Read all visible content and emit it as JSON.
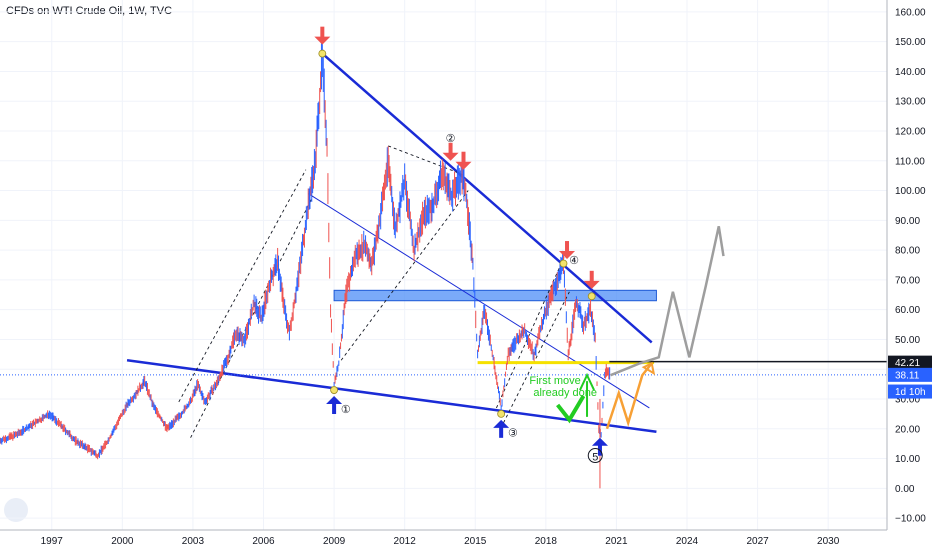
{
  "header": {
    "title": "CFDs on WTI Crude Oil, 1W, TVC"
  },
  "chart_data": {
    "type": "line",
    "title": "CFDs on WTI Crude Oil, 1W, TVC",
    "xlabel": "",
    "ylabel": "",
    "xlim": [
      1994.8,
      2032.5
    ],
    "ylim": [
      -14,
      164
    ],
    "x_ticks": [
      "1997",
      "2000",
      "2003",
      "2006",
      "2009",
      "2012",
      "2015",
      "2018",
      "2021",
      "2024",
      "2027",
      "2030"
    ],
    "x_tick_values": [
      1997,
      2000,
      2003,
      2006,
      2009,
      2012,
      2015,
      2018,
      2021,
      2024,
      2027,
      2030
    ],
    "y_ticks": [
      "160.00",
      "150.00",
      "140.00",
      "130.00",
      "120.00",
      "110.00",
      "100.00",
      "90.00",
      "80.00",
      "70.00",
      "60.00",
      "50.00",
      "40.00",
      "30.00",
      "20.00",
      "10.00",
      "0.00",
      "−10.00"
    ],
    "y_tick_values": [
      160,
      150,
      140,
      130,
      120,
      110,
      100,
      90,
      80,
      70,
      60,
      50,
      40,
      30,
      20,
      10,
      0,
      -10
    ],
    "grid": true,
    "price_series": [
      [
        1994.8,
        16
      ],
      [
        1995.5,
        18
      ],
      [
        1996.3,
        22
      ],
      [
        1996.9,
        25
      ],
      [
        1997.4,
        21
      ],
      [
        1998.0,
        16
      ],
      [
        1998.6,
        13
      ],
      [
        1998.95,
        11
      ],
      [
        1999.4,
        16
      ],
      [
        1999.8,
        22
      ],
      [
        2000.2,
        28
      ],
      [
        2000.7,
        33
      ],
      [
        2000.95,
        36
      ],
      [
        2001.3,
        28
      ],
      [
        2001.9,
        20
      ],
      [
        2002.4,
        24
      ],
      [
        2002.9,
        29
      ],
      [
        2003.2,
        35
      ],
      [
        2003.5,
        29
      ],
      [
        2004.0,
        35
      ],
      [
        2004.5,
        44
      ],
      [
        2004.8,
        52
      ],
      [
        2005.2,
        50
      ],
      [
        2005.6,
        62
      ],
      [
        2005.9,
        57
      ],
      [
        2006.3,
        70
      ],
      [
        2006.6,
        76
      ],
      [
        2006.9,
        60
      ],
      [
        2007.1,
        52
      ],
      [
        2007.5,
        72
      ],
      [
        2007.9,
        95
      ],
      [
        2008.2,
        110
      ],
      [
        2008.5,
        145
      ],
      [
        2008.7,
        115
      ],
      [
        2008.85,
        60
      ],
      [
        2009.0,
        35
      ],
      [
        2009.2,
        42
      ],
      [
        2009.5,
        65
      ],
      [
        2009.9,
        78
      ],
      [
        2010.3,
        82
      ],
      [
        2010.6,
        75
      ],
      [
        2010.9,
        88
      ],
      [
        2011.3,
        110
      ],
      [
        2011.6,
        87
      ],
      [
        2012.0,
        103
      ],
      [
        2012.4,
        80
      ],
      [
        2012.8,
        92
      ],
      [
        2013.2,
        95
      ],
      [
        2013.6,
        106
      ],
      [
        2014.0,
        98
      ],
      [
        2014.4,
        105
      ],
      [
        2014.6,
        100
      ],
      [
        2014.9,
        75
      ],
      [
        2015.1,
        45
      ],
      [
        2015.4,
        60
      ],
      [
        2015.8,
        42
      ],
      [
        2016.1,
        27
      ],
      [
        2016.4,
        45
      ],
      [
        2016.8,
        50
      ],
      [
        2017.1,
        53
      ],
      [
        2017.5,
        45
      ],
      [
        2017.9,
        57
      ],
      [
        2018.3,
        66
      ],
      [
        2018.75,
        76
      ],
      [
        2018.95,
        45
      ],
      [
        2019.3,
        63
      ],
      [
        2019.6,
        55
      ],
      [
        2019.9,
        60
      ],
      [
        2020.1,
        50
      ],
      [
        2020.25,
        20
      ],
      [
        2020.35,
        18
      ],
      [
        2020.5,
        38
      ],
      [
        2020.6,
        40
      ],
      [
        2020.75,
        38.11
      ]
    ],
    "projection": [
      [
        2020.75,
        38
      ],
      [
        2022.0,
        42
      ],
      [
        2022.8,
        44
      ],
      [
        2023.4,
        66
      ],
      [
        2024.1,
        44
      ],
      [
        2024.8,
        68
      ],
      [
        2025.35,
        88
      ],
      [
        2025.55,
        78
      ]
    ],
    "orange_path": [
      [
        2020.6,
        20
      ],
      [
        2021.1,
        32
      ],
      [
        2021.5,
        22
      ],
      [
        2022.1,
        38
      ],
      [
        2022.5,
        42
      ]
    ],
    "trend_lines": [
      {
        "name": "upper-resistance",
        "from": [
          2008.5,
          146
        ],
        "to": [
          2022.5,
          49
        ]
      },
      {
        "name": "lower-support",
        "from": [
          2000.2,
          43
        ],
        "to": [
          2022.7,
          19
        ]
      },
      {
        "name": "mid-channel",
        "from": [
          2007.9,
          99
        ],
        "to": [
          2022.4,
          27
        ]
      }
    ],
    "resistance_zone": {
      "y_low": 63,
      "y_high": 66.5,
      "x_from": 2009.0,
      "x_to": 2022.7
    },
    "yellow_level": {
      "y": 42.2,
      "x_from": 2015.1,
      "x_to": 2022.6
    },
    "black_level": {
      "y": 42.21,
      "x_from": 2020.7,
      "x_to": 2032.5
    },
    "blue_dotted_level": {
      "y": 38.11
    },
    "price_tags": [
      {
        "value": "42.21",
        "y": 42.21,
        "color": "#131722"
      },
      {
        "value": "38.11",
        "y": 38.11,
        "color": "#2962ff"
      },
      {
        "value": "1d 10h",
        "y": 32.5,
        "color": "#2962ff"
      }
    ],
    "wave_labels": [
      {
        "label": "①",
        "x": 2009.5,
        "y": 27
      },
      {
        "label": "②",
        "x": 2013.95,
        "y": 118
      },
      {
        "label": "③",
        "x": 2016.6,
        "y": 19
      },
      {
        "label": "④",
        "x": 2019.2,
        "y": 77
      },
      {
        "label": "5",
        "x": 2020.1,
        "y": 11
      }
    ],
    "annotation": {
      "lines": [
        "First move",
        "already done"
      ],
      "x": 2017.3,
      "y": 35
    },
    "red_arrows": [
      [
        2008.5,
        149
      ],
      [
        2013.95,
        110
      ],
      [
        2014.5,
        107
      ],
      [
        2018.9,
        77
      ],
      [
        2019.95,
        67
      ]
    ],
    "blue_arrows": [
      [
        2009.0,
        31
      ],
      [
        2016.1,
        23
      ],
      [
        2020.3,
        17
      ]
    ],
    "colors": {
      "up": "#2962ff",
      "down": "#ef5350",
      "trend": "#1a2bd6",
      "zone": "#4d8ef7",
      "yellow": "#f5e100",
      "green": "#22cc22",
      "orange": "#f7a035",
      "projection": "#9e9e9e"
    }
  }
}
